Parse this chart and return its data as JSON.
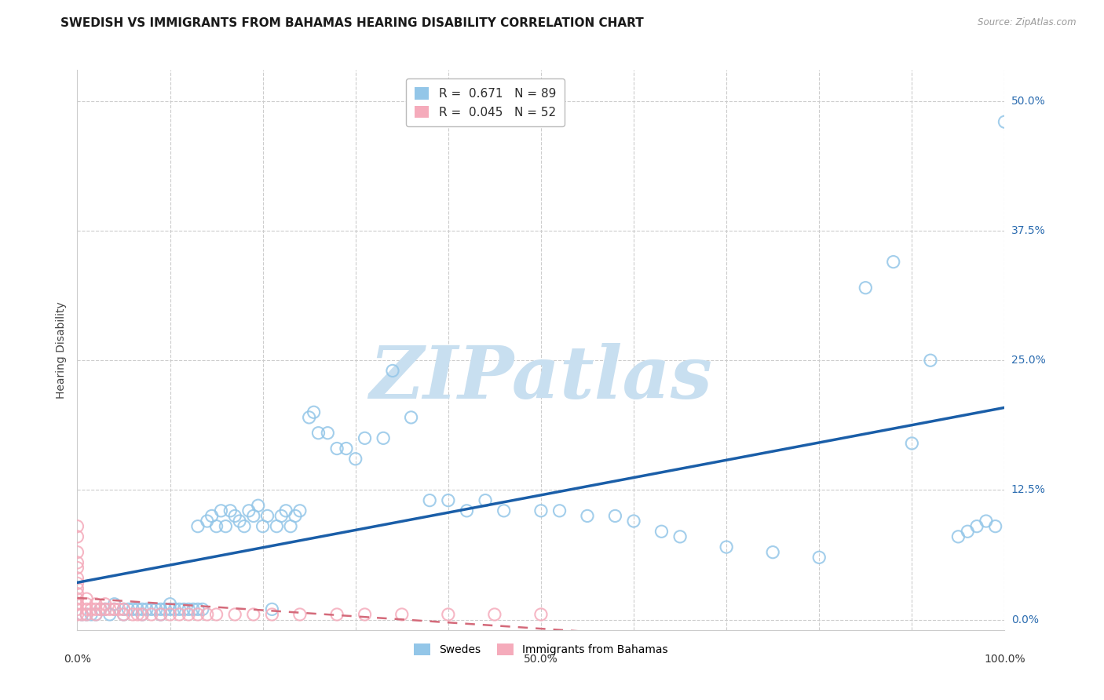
{
  "title": "SWEDISH VS IMMIGRANTS FROM BAHAMAS HEARING DISABILITY CORRELATION CHART",
  "source": "Source: ZipAtlas.com",
  "ylabel": "Hearing Disability",
  "xlabel": "",
  "xlim": [
    0,
    1.0
  ],
  "ylim": [
    -0.01,
    0.53
  ],
  "yticks": [
    0.0,
    0.125,
    0.25,
    0.375,
    0.5
  ],
  "ytick_labels": [
    "0.0%",
    "12.5%",
    "25.0%",
    "37.5%",
    "50.0%"
  ],
  "xtick_vals": [
    0.0,
    0.5,
    1.0
  ],
  "xtick_labels": [
    "0.0%",
    "50.0%",
    "100.0%"
  ],
  "swedes_color": "#93C6E8",
  "immigrants_color": "#F5ABBB",
  "regression_swedes_color": "#1A5EA8",
  "regression_immigrants_color": "#D46A7A",
  "R_swedes": 0.671,
  "N_swedes": 89,
  "R_immigrants": 0.045,
  "N_immigrants": 52,
  "swedes_x": [
    0.005,
    0.01,
    0.015,
    0.02,
    0.025,
    0.03,
    0.035,
    0.04,
    0.04,
    0.05,
    0.05,
    0.055,
    0.06,
    0.065,
    0.07,
    0.07,
    0.075,
    0.08,
    0.085,
    0.09,
    0.09,
    0.095,
    0.1,
    0.1,
    0.105,
    0.11,
    0.115,
    0.12,
    0.125,
    0.13,
    0.13,
    0.135,
    0.14,
    0.145,
    0.15,
    0.155,
    0.16,
    0.165,
    0.17,
    0.175,
    0.18,
    0.185,
    0.19,
    0.195,
    0.2,
    0.205,
    0.21,
    0.215,
    0.22,
    0.225,
    0.23,
    0.235,
    0.24,
    0.25,
    0.255,
    0.26,
    0.27,
    0.28,
    0.29,
    0.3,
    0.31,
    0.33,
    0.34,
    0.36,
    0.38,
    0.4,
    0.42,
    0.44,
    0.46,
    0.5,
    0.52,
    0.55,
    0.58,
    0.6,
    0.63,
    0.65,
    0.7,
    0.75,
    0.8,
    0.85,
    0.88,
    0.9,
    0.92,
    0.95,
    0.96,
    0.97,
    0.98,
    0.99,
    1.0
  ],
  "swedes_y": [
    0.005,
    0.005,
    0.005,
    0.005,
    0.01,
    0.01,
    0.005,
    0.01,
    0.015,
    0.01,
    0.005,
    0.01,
    0.01,
    0.01,
    0.005,
    0.01,
    0.01,
    0.01,
    0.01,
    0.01,
    0.005,
    0.01,
    0.01,
    0.015,
    0.01,
    0.01,
    0.01,
    0.01,
    0.01,
    0.01,
    0.09,
    0.01,
    0.095,
    0.1,
    0.09,
    0.105,
    0.09,
    0.105,
    0.1,
    0.095,
    0.09,
    0.105,
    0.1,
    0.11,
    0.09,
    0.1,
    0.01,
    0.09,
    0.1,
    0.105,
    0.09,
    0.1,
    0.105,
    0.195,
    0.2,
    0.18,
    0.18,
    0.165,
    0.165,
    0.155,
    0.175,
    0.175,
    0.24,
    0.195,
    0.115,
    0.115,
    0.105,
    0.115,
    0.105,
    0.105,
    0.105,
    0.1,
    0.1,
    0.095,
    0.085,
    0.08,
    0.07,
    0.065,
    0.06,
    0.32,
    0.345,
    0.17,
    0.25,
    0.08,
    0.085,
    0.09,
    0.095,
    0.09,
    0.48
  ],
  "immigrants_x": [
    0.0,
    0.0,
    0.0,
    0.0,
    0.0,
    0.0,
    0.0,
    0.0,
    0.0,
    0.0,
    0.005,
    0.01,
    0.01,
    0.01,
    0.01,
    0.015,
    0.02,
    0.02,
    0.02,
    0.025,
    0.03,
    0.03,
    0.035,
    0.04,
    0.045,
    0.05,
    0.05,
    0.06,
    0.065,
    0.07,
    0.08,
    0.09,
    0.1,
    0.11,
    0.12,
    0.13,
    0.14,
    0.15,
    0.17,
    0.19,
    0.21,
    0.24,
    0.28,
    0.31,
    0.35,
    0.4,
    0.45,
    0.5,
    0.0,
    0.0,
    0.0,
    0.0
  ],
  "immigrants_y": [
    0.005,
    0.01,
    0.015,
    0.02,
    0.025,
    0.03,
    0.035,
    0.04,
    0.05,
    0.065,
    0.005,
    0.005,
    0.01,
    0.015,
    0.02,
    0.01,
    0.005,
    0.01,
    0.015,
    0.01,
    0.01,
    0.015,
    0.01,
    0.01,
    0.01,
    0.005,
    0.01,
    0.005,
    0.005,
    0.005,
    0.005,
    0.005,
    0.005,
    0.005,
    0.005,
    0.005,
    0.005,
    0.005,
    0.005,
    0.005,
    0.005,
    0.005,
    0.005,
    0.005,
    0.005,
    0.005,
    0.005,
    0.005,
    0.08,
    0.09,
    0.055,
    0.015
  ],
  "background_color": "#FFFFFF",
  "grid_color": "#CCCCCC",
  "watermark_color": "#C8DFF0",
  "title_fontsize": 11,
  "axis_label_fontsize": 10,
  "tick_fontsize": 10,
  "legend_fontsize": 11
}
